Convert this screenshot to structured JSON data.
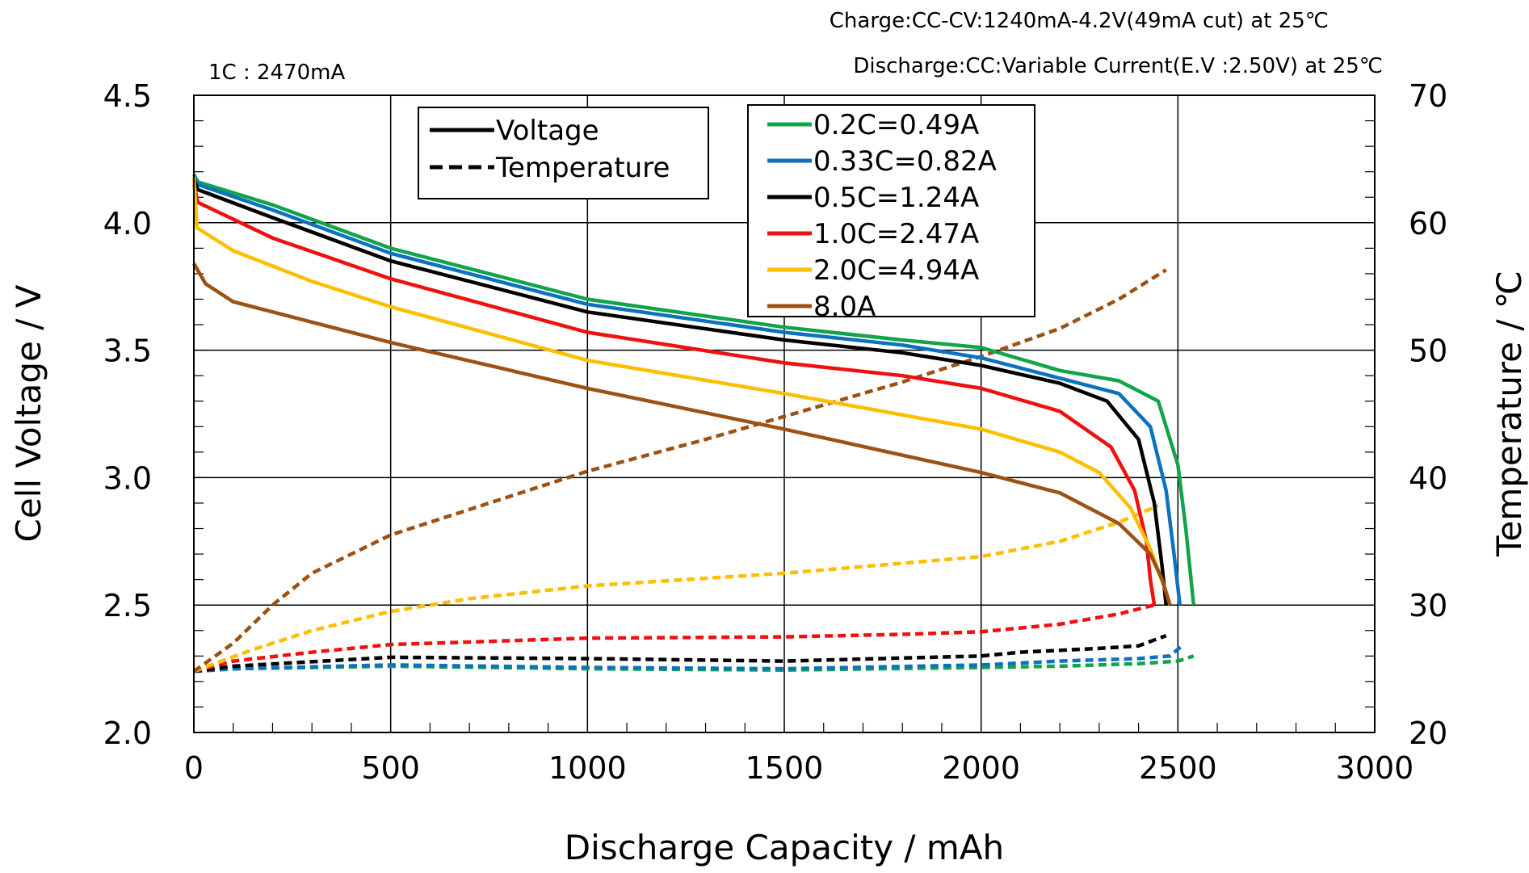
{
  "chart_data": {
    "type": "line",
    "header_notes": [
      "Charge:CC-CV:1240mA-4.2V(49mA  cut) at 25℃",
      "Discharge:CC:Variable  Current(E.V :2.50V) at 25℃"
    ],
    "rate_note": "1C : 2470mA",
    "xlabel": "Discharge  Capacity / mAh",
    "ylabel": "Cell  Voltage  /  V",
    "y2label": "Temperature / ℃",
    "xlim": [
      0,
      3000
    ],
    "ylim": [
      2.0,
      4.5
    ],
    "y2lim": [
      20,
      70
    ],
    "xticks": [
      "0",
      "500",
      "1000",
      "1500",
      "2000",
      "2500",
      "3000"
    ],
    "yticks": [
      "2.0",
      "2.5",
      "3.0",
      "3.5",
      "4.0",
      "4.5"
    ],
    "y2ticks": [
      "20",
      "30",
      "40",
      "50",
      "60",
      "70"
    ],
    "grid": true,
    "style_legend": [
      {
        "label": "Voltage",
        "dash": "solid"
      },
      {
        "label": "Temperature",
        "dash": "dashed"
      }
    ],
    "series": [
      {
        "name": "0.2C=0.49A",
        "color": "#12a44a",
        "voltage": [
          [
            0,
            4.19
          ],
          [
            10,
            4.16
          ],
          [
            200,
            4.07
          ],
          [
            500,
            3.9
          ],
          [
            1000,
            3.7
          ],
          [
            1500,
            3.59
          ],
          [
            1800,
            3.54
          ],
          [
            2000,
            3.51
          ],
          [
            2200,
            3.42
          ],
          [
            2350,
            3.38
          ],
          [
            2450,
            3.3
          ],
          [
            2500,
            3.05
          ],
          [
            2520,
            2.8
          ],
          [
            2540,
            2.5
          ]
        ],
        "temperature": [
          [
            0,
            24.8
          ],
          [
            100,
            25.0
          ],
          [
            500,
            25.2
          ],
          [
            1000,
            25.0
          ],
          [
            1500,
            24.9
          ],
          [
            2000,
            25.1
          ],
          [
            2200,
            25.2
          ],
          [
            2400,
            25.4
          ],
          [
            2500,
            25.6
          ],
          [
            2540,
            26.0
          ]
        ]
      },
      {
        "name": "0.33C=0.82A",
        "color": "#0c72c0",
        "voltage": [
          [
            0,
            4.18
          ],
          [
            10,
            4.15
          ],
          [
            200,
            4.05
          ],
          [
            500,
            3.88
          ],
          [
            1000,
            3.68
          ],
          [
            1500,
            3.57
          ],
          [
            1800,
            3.52
          ],
          [
            2000,
            3.47
          ],
          [
            2200,
            3.39
          ],
          [
            2350,
            3.33
          ],
          [
            2430,
            3.2
          ],
          [
            2470,
            2.95
          ],
          [
            2490,
            2.7
          ],
          [
            2505,
            2.5
          ]
        ],
        "temperature": [
          [
            0,
            24.8
          ],
          [
            100,
            25.0
          ],
          [
            500,
            25.3
          ],
          [
            1000,
            25.1
          ],
          [
            1500,
            25.0
          ],
          [
            2000,
            25.3
          ],
          [
            2200,
            25.6
          ],
          [
            2400,
            25.8
          ],
          [
            2480,
            26.0
          ],
          [
            2510,
            26.8
          ]
        ]
      },
      {
        "name": "0.5C=1.24A",
        "color": "#000000",
        "voltage": [
          [
            0,
            4.17
          ],
          [
            10,
            4.13
          ],
          [
            200,
            4.02
          ],
          [
            500,
            3.85
          ],
          [
            1000,
            3.65
          ],
          [
            1500,
            3.54
          ],
          [
            1800,
            3.49
          ],
          [
            2000,
            3.44
          ],
          [
            2200,
            3.37
          ],
          [
            2320,
            3.3
          ],
          [
            2400,
            3.15
          ],
          [
            2440,
            2.9
          ],
          [
            2460,
            2.65
          ],
          [
            2470,
            2.5
          ]
        ],
        "temperature": [
          [
            0,
            24.8
          ],
          [
            100,
            25.2
          ],
          [
            500,
            25.9
          ],
          [
            1000,
            25.8
          ],
          [
            1500,
            25.6
          ],
          [
            2000,
            26.0
          ],
          [
            2100,
            26.3
          ],
          [
            2300,
            26.6
          ],
          [
            2400,
            26.8
          ],
          [
            2470,
            27.6
          ]
        ]
      },
      {
        "name": "1.0C=2.47A",
        "color": "#f01010",
        "voltage": [
          [
            0,
            4.15
          ],
          [
            10,
            4.08
          ],
          [
            200,
            3.94
          ],
          [
            500,
            3.78
          ],
          [
            1000,
            3.57
          ],
          [
            1500,
            3.45
          ],
          [
            1800,
            3.4
          ],
          [
            2000,
            3.35
          ],
          [
            2200,
            3.26
          ],
          [
            2330,
            3.12
          ],
          [
            2390,
            2.95
          ],
          [
            2420,
            2.75
          ],
          [
            2430,
            2.6
          ],
          [
            2440,
            2.5
          ]
        ],
        "temperature": [
          [
            0,
            24.8
          ],
          [
            100,
            25.6
          ],
          [
            300,
            26.3
          ],
          [
            500,
            26.9
          ],
          [
            700,
            27.1
          ],
          [
            1000,
            27.4
          ],
          [
            1500,
            27.5
          ],
          [
            1800,
            27.7
          ],
          [
            2000,
            27.9
          ],
          [
            2200,
            28.5
          ],
          [
            2350,
            29.3
          ],
          [
            2440,
            30.0
          ]
        ]
      },
      {
        "name": "2.0C=4.94A",
        "color": "#ffbe00",
        "voltage": [
          [
            0,
            4.18
          ],
          [
            8,
            3.98
          ],
          [
            100,
            3.89
          ],
          [
            300,
            3.77
          ],
          [
            500,
            3.67
          ],
          [
            1000,
            3.46
          ],
          [
            1500,
            3.33
          ],
          [
            2000,
            3.19
          ],
          [
            2200,
            3.1
          ],
          [
            2300,
            3.02
          ],
          [
            2380,
            2.88
          ],
          [
            2430,
            2.72
          ],
          [
            2470,
            2.55
          ],
          [
            2480,
            2.5
          ]
        ],
        "temperature": [
          [
            0,
            24.8
          ],
          [
            150,
            26.5
          ],
          [
            300,
            28.0
          ],
          [
            500,
            29.5
          ],
          [
            700,
            30.5
          ],
          [
            1000,
            31.5
          ],
          [
            1500,
            32.5
          ],
          [
            2000,
            33.8
          ],
          [
            2200,
            35.0
          ],
          [
            2350,
            36.5
          ],
          [
            2450,
            37.8
          ]
        ]
      },
      {
        "name": "8.0A",
        "color": "#9c5214",
        "voltage": [
          [
            0,
            3.84
          ],
          [
            30,
            3.76
          ],
          [
            100,
            3.69
          ],
          [
            300,
            3.61
          ],
          [
            500,
            3.53
          ],
          [
            1000,
            3.35
          ],
          [
            1500,
            3.19
          ],
          [
            2000,
            3.02
          ],
          [
            2200,
            2.94
          ],
          [
            2350,
            2.82
          ],
          [
            2430,
            2.7
          ],
          [
            2460,
            2.6
          ],
          [
            2480,
            2.5
          ]
        ],
        "temperature": [
          [
            0,
            24.8
          ],
          [
            100,
            27.0
          ],
          [
            200,
            30.0
          ],
          [
            300,
            32.5
          ],
          [
            500,
            35.5
          ],
          [
            700,
            37.5
          ],
          [
            1000,
            40.5
          ],
          [
            1300,
            43.0
          ],
          [
            1500,
            44.8
          ],
          [
            1800,
            47.5
          ],
          [
            2000,
            49.5
          ],
          [
            2200,
            51.7
          ],
          [
            2350,
            54.0
          ],
          [
            2470,
            56.3
          ]
        ]
      }
    ]
  }
}
